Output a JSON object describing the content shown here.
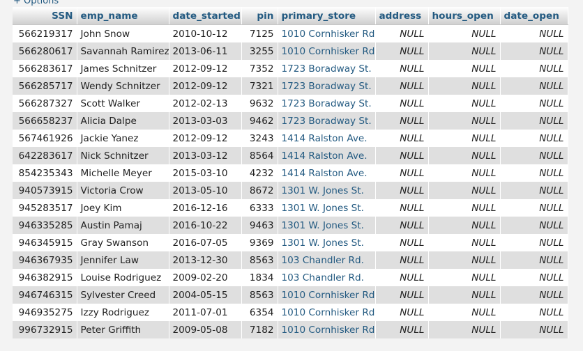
{
  "options_link": "+ Options",
  "columns": [
    "SSN",
    "emp_name",
    "date_started",
    "pin",
    "primary_store",
    "address",
    "hours_open",
    "date_open"
  ],
  "rows": [
    [
      "566219317",
      "John Snow",
      "2010-10-12",
      "7125",
      "1010 Cornhisker Rd.",
      "NULL",
      "NULL",
      "NULL"
    ],
    [
      "566280617",
      "Savannah Ramirez",
      "2013-06-11",
      "3255",
      "1010 Cornhisker Rd.",
      "NULL",
      "NULL",
      "NULL"
    ],
    [
      "566283617",
      "James Schnitzer",
      "2012-09-12",
      "7352",
      "1723 Boradway St.",
      "NULL",
      "NULL",
      "NULL"
    ],
    [
      "566285717",
      "Wendy Schnitzer",
      "2012-09-12",
      "7321",
      "1723 Boradway St.",
      "NULL",
      "NULL",
      "NULL"
    ],
    [
      "566287327",
      "Scott Walker",
      "2012-02-13",
      "9632",
      "1723 Boradway St.",
      "NULL",
      "NULL",
      "NULL"
    ],
    [
      "566658237",
      "Alicia Dalpe",
      "2013-03-03",
      "9462",
      "1723 Boradway St.",
      "NULL",
      "NULL",
      "NULL"
    ],
    [
      "567461926",
      "Jackie Yanez",
      "2012-09-12",
      "3243",
      "1414 Ralston Ave.",
      "NULL",
      "NULL",
      "NULL"
    ],
    [
      "642283617",
      "Nick Schnitzer",
      "2013-03-12",
      "8564",
      "1414 Ralston Ave.",
      "NULL",
      "NULL",
      "NULL"
    ],
    [
      "854235343",
      "Michelle Meyer",
      "2015-03-10",
      "4232",
      "1414 Ralston Ave.",
      "NULL",
      "NULL",
      "NULL"
    ],
    [
      "940573915",
      "Victoria Crow",
      "2013-05-10",
      "8672",
      "1301 W. Jones St.",
      "NULL",
      "NULL",
      "NULL"
    ],
    [
      "945283517",
      "Joey Kim",
      "2016-12-16",
      "6333",
      "1301 W. Jones St.",
      "NULL",
      "NULL",
      "NULL"
    ],
    [
      "946335285",
      "Austin Pamaj",
      "2016-10-22",
      "9463",
      "1301 W. Jones St.",
      "NULL",
      "NULL",
      "NULL"
    ],
    [
      "946345915",
      "Gray Swanson",
      "2016-07-05",
      "9369",
      "1301 W. Jones St.",
      "NULL",
      "NULL",
      "NULL"
    ],
    [
      "946367935",
      "Jennifer Law",
      "2013-12-30",
      "8563",
      "103 Chandler Rd.",
      "NULL",
      "NULL",
      "NULL"
    ],
    [
      "946382915",
      "Louise Rodriguez",
      "2009-02-20",
      "1834",
      "103 Chandler Rd.",
      "NULL",
      "NULL",
      "NULL"
    ],
    [
      "946746315",
      "Sylvester Creed",
      "2004-05-15",
      "8563",
      "1010 Cornhisker Rd.",
      "NULL",
      "NULL",
      "NULL"
    ],
    [
      "946935275",
      "Izzy Rodriguez",
      "2011-07-01",
      "6354",
      "1010 Cornhisker Rd.",
      "NULL",
      "NULL",
      "NULL"
    ],
    [
      "996732915",
      "Peter Griffith",
      "2009-05-08",
      "7182",
      "1010 Cornhisker Rd.",
      "NULL",
      "NULL",
      "NULL"
    ]
  ]
}
